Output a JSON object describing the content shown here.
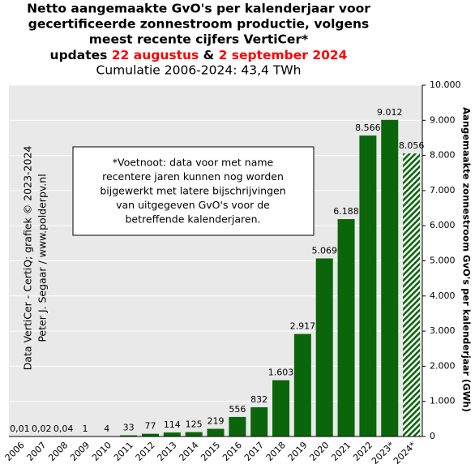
{
  "chart_data": {
    "type": "bar",
    "title_lines": [
      "Netto aangemaakte GvO's per kalenderjaar voor",
      "gecertificeerde zonnestroom productie, volgens",
      "meest recente cijfers VertiCer*"
    ],
    "update_parts": [
      "updates ",
      "22 augustus",
      " & ",
      "2 september 2024"
    ],
    "highlight_color": "#ff0000",
    "subtitle": "Cumulatie 2006-2024: 43,4 TWh",
    "y_label": "Aangemaakte zonnestroom GvO's per kalenderjaar (GWh)",
    "annotation_lines": [
      "*Voetnoot: data voor met name",
      "recentere jaren kunnen nog worden",
      "bijgewerkt met latere bijschrijvingen",
      "van uitgegeven GvO's voor de",
      "betreffende kalenderjaren."
    ],
    "credit_lines": [
      "Data VertiCer - CertiQ; grafiek © 2023-2024",
      "Peter J. Segaar / www.polderpv.nl"
    ],
    "categories": [
      "2006",
      "2007",
      "2008",
      "2009",
      "2010",
      "2011",
      "2012",
      "2013",
      "2014",
      "2015",
      "2016",
      "2017",
      "2018",
      "2019",
      "2020",
      "2021",
      "2022",
      "2023*",
      "2024*"
    ],
    "values": [
      0.01,
      0.02,
      0.04,
      1,
      4,
      33,
      77,
      114,
      125,
      219,
      556,
      832,
      1603,
      2917,
      5069,
      6188,
      8566,
      9012,
      8056
    ],
    "value_labels": [
      "0,01",
      "0,02",
      "0,04",
      "1",
      "4",
      "33",
      "77",
      "114",
      "125",
      "219",
      "556",
      "832",
      "1.603",
      "2.917",
      "5.069",
      "6.188",
      "8.566",
      "9.012",
      "8.056"
    ],
    "hatched": [
      false,
      false,
      false,
      false,
      false,
      false,
      false,
      false,
      false,
      false,
      false,
      false,
      false,
      false,
      false,
      false,
      false,
      false,
      true
    ],
    "color": "#0b650b",
    "ylim": [
      0,
      10000
    ],
    "yticks": [
      0,
      {
        "value": 1000,
        "label": "1.000"
      },
      {
        "value": 2000,
        "label": "2.000"
      },
      {
        "value": 3000,
        "label": "3.000"
      },
      {
        "value": 4000,
        "label": "4.000"
      },
      {
        "value": 5000,
        "label": "5.000"
      },
      {
        "value": 6000,
        "label": "6.000"
      },
      {
        "value": 7000,
        "label": "7.000"
      },
      {
        "value": 8000,
        "label": "8.000"
      },
      {
        "value": 9000,
        "label": "9.000"
      },
      {
        "value": 10000,
        "label": "10.000"
      }
    ],
    "grid": true
  }
}
